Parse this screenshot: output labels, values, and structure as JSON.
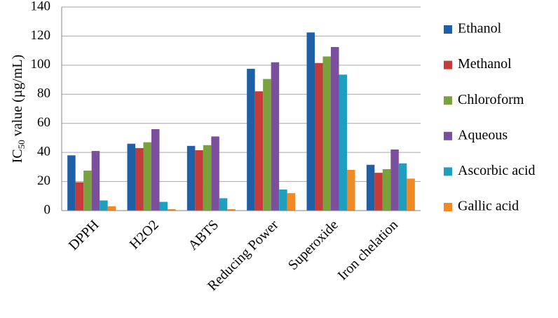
{
  "chart_data": {
    "type": "bar",
    "y_label": {
      "text": "IC",
      "subscript": "50",
      "rest": " value (µg/mL)"
    },
    "categories": [
      "DPPH",
      "H2O2",
      "ABTS",
      "Reducing Power",
      "Superoxide",
      "Iron chelation"
    ],
    "series": [
      {
        "name": "Ethanol",
        "color": "#1f5fa6",
        "values": [
          38,
          46,
          44.5,
          97.5,
          122.5,
          31.5
        ]
      },
      {
        "name": "Methanol",
        "color": "#c43c3a",
        "values": [
          19.5,
          43,
          41.5,
          82,
          101.5,
          26
        ]
      },
      {
        "name": "Chloroform",
        "color": "#7aa23c",
        "values": [
          27.5,
          47,
          45,
          90.5,
          106,
          28.5
        ]
      },
      {
        "name": "Aqueous",
        "color": "#7b4f9d",
        "values": [
          41,
          56,
          51,
          102,
          112.5,
          42
        ]
      },
      {
        "name": "Ascorbic acid",
        "color": "#1e9fc0",
        "values": [
          7,
          6,
          8.5,
          14.5,
          93.5,
          32.5
        ]
      },
      {
        "name": "Gallic acid",
        "color": "#f18a22",
        "values": [
          3,
          1,
          1,
          12,
          28,
          22
        ]
      }
    ],
    "ylim": [
      0,
      140
    ],
    "yticks": [
      0,
      20,
      40,
      60,
      80,
      100,
      120,
      140
    ],
    "grid": true,
    "legend": "right"
  }
}
